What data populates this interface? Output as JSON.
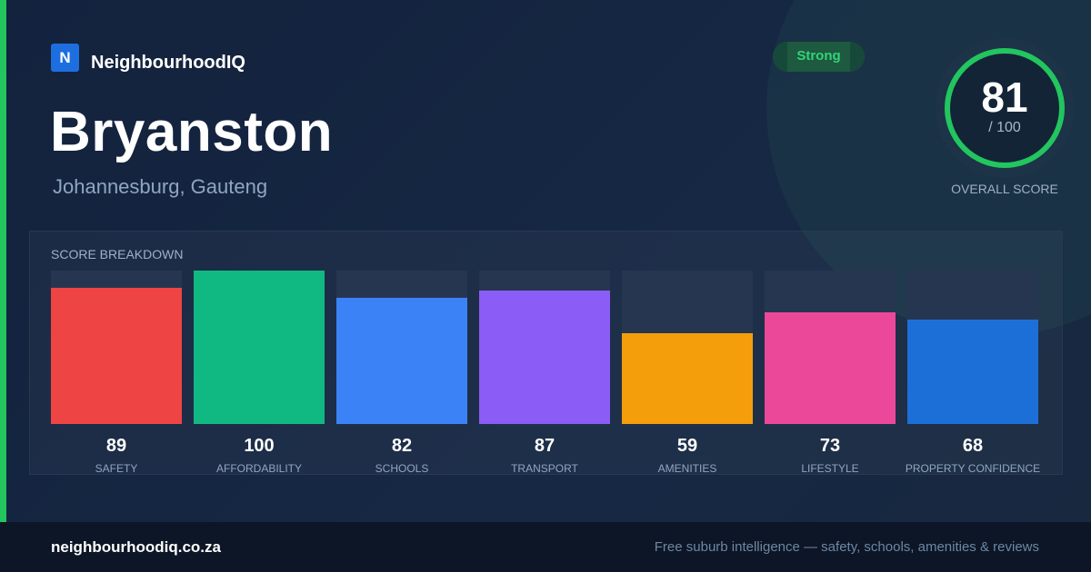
{
  "brand": {
    "logo_letter": "N",
    "name": "NeighbourhoodIQ"
  },
  "suburb": {
    "name": "Bryanston",
    "location": "Johannesburg, Gauteng"
  },
  "rating": {
    "label": "Strong",
    "color": "#22c55e"
  },
  "overall": {
    "score": 81,
    "score_text": "81",
    "total_text": "/ 100",
    "max": 100,
    "caption": "OVERALL SCORE"
  },
  "breakdown": {
    "title": "SCORE BREAKDOWN"
  },
  "chart_data": {
    "type": "bar",
    "categories": [
      "SAFETY",
      "AFFORDABILITY",
      "SCHOOLS",
      "TRANSPORT",
      "AMENITIES",
      "LIFESTYLE",
      "PROPERTY CONFIDENCE"
    ],
    "values": [
      89,
      100,
      82,
      87,
      59,
      73,
      68
    ],
    "value_labels": [
      "89",
      "100",
      "82",
      "87",
      "59",
      "73",
      "68"
    ],
    "colors": [
      "#ef4444",
      "#10b981",
      "#3b82f6",
      "#8b5cf6",
      "#f59e0b",
      "#ec4899",
      "#1d6fd8"
    ],
    "ylim": [
      0,
      100
    ],
    "grid": false
  },
  "footer": {
    "domain": "neighbourhoodiq.co.za",
    "tagline": "Free suburb intelligence — safety, schools, amenities & reviews"
  },
  "colors": {
    "accent": "#22c55e",
    "brand": "#1d6fe0",
    "background": "#13213a"
  }
}
